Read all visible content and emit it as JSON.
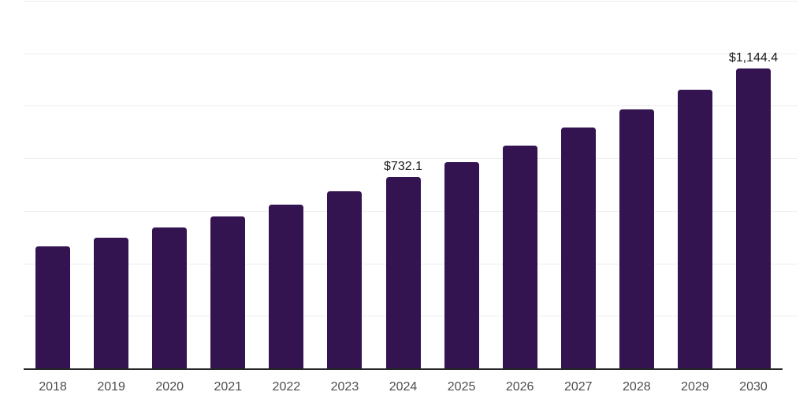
{
  "chart_data": {
    "type": "bar",
    "title": "",
    "xlabel": "",
    "ylabel": "",
    "categories": [
      "2018",
      "2019",
      "2020",
      "2021",
      "2022",
      "2023",
      "2024",
      "2025",
      "2026",
      "2027",
      "2028",
      "2029",
      "2030"
    ],
    "values": [
      467,
      502,
      540,
      583,
      627,
      679,
      732.1,
      787,
      852,
      920,
      990,
      1065,
      1144.4
    ],
    "data_labels": [
      {
        "category": "2024",
        "text": "$732.1"
      },
      {
        "category": "2030",
        "text": "$1,144.4"
      }
    ],
    "ylim": [
      0,
      1400
    ],
    "gridline_step": 200,
    "grid": true,
    "y_tick_labels_shown": false,
    "legend": "none",
    "colors": {
      "bar": "#331450",
      "grid": "#ededed",
      "axis": "#262626",
      "tick_label": "#4d4d4d",
      "data_label": "#1a1a1a",
      "background": "#ffffff"
    }
  }
}
